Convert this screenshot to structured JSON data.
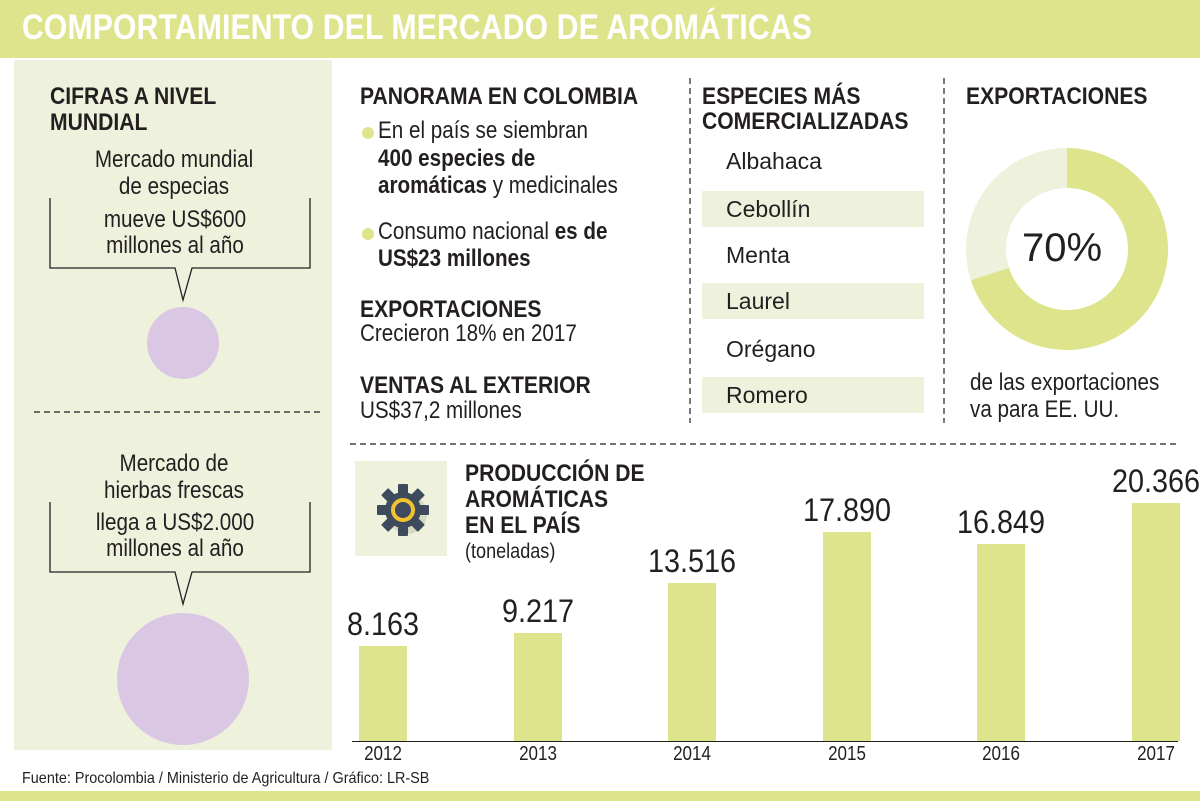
{
  "header": {
    "title": "COMPORTAMIENTO DEL MERCADO DE AROMÁTICAS"
  },
  "mundial": {
    "heading": "CIFRAS A NIVEL MUNDIAL",
    "especias": {
      "line1": "Mercado mundial",
      "line2": "de especias",
      "value_line1": "mueve US$600",
      "value_line2": "millones al año",
      "value_musd": 600
    },
    "hierbas": {
      "line1": "Mercado de",
      "line2": "hierbas frescas",
      "value_line1": "llega a US$2.000",
      "value_line2": "millones al año",
      "value_musd": 2000
    }
  },
  "panorama": {
    "heading": "PANORAMA EN COLOMBIA",
    "b1_l1": "En el país se siembran",
    "b1_l2": "400 especies de",
    "b1_l3a": "aromáticas",
    "b1_l3b": " y medicinales",
    "b2_l1a": "Consumo nacional",
    "b2_l1b": " es de",
    "b2_l2": "US$23 millones",
    "export_heading": "EXPORTACIONES",
    "export_text": "Crecieron 18% en 2017",
    "ventas_heading": "VENTAS AL EXTERIOR",
    "ventas_text": "US$37,2 millones"
  },
  "especies": {
    "heading_l1": "ESPECIES MÁS",
    "heading_l2": "COMERCIALIZADAS",
    "items": [
      "Albahaca",
      "Cebollín",
      "Menta",
      "Laurel",
      "Orégano",
      "Romero"
    ]
  },
  "exportaciones": {
    "heading": "EXPORTACIONES",
    "percent_label": "70%",
    "percent": 70,
    "caption_l1": "de las exportaciones",
    "caption_l2": "va para EE. UU."
  },
  "colors": {
    "accent": "#dde48c",
    "accent_light": "#eef1dc",
    "circle": "#d9c7e3",
    "text": "#231f20"
  },
  "chart_data": {
    "type": "bar",
    "title_l1": "PRODUCCIÓN DE",
    "title_l2": "AROMÁTICAS",
    "title_l3": "EN EL PAÍS",
    "unit": "(toneladas)",
    "categories": [
      "2012",
      "2013",
      "2014",
      "2015",
      "2016",
      "2017"
    ],
    "values": [
      8163,
      9217,
      13516,
      17890,
      16849,
      20366
    ],
    "labels": [
      "8.163",
      "9.217",
      "13.516",
      "17.890",
      "16.849",
      "20.366"
    ],
    "ylim": [
      0,
      21000
    ]
  },
  "footer": {
    "source": "Fuente:  Procolombia / Ministerio de Agricultura / Gráfico: LR-SB"
  }
}
